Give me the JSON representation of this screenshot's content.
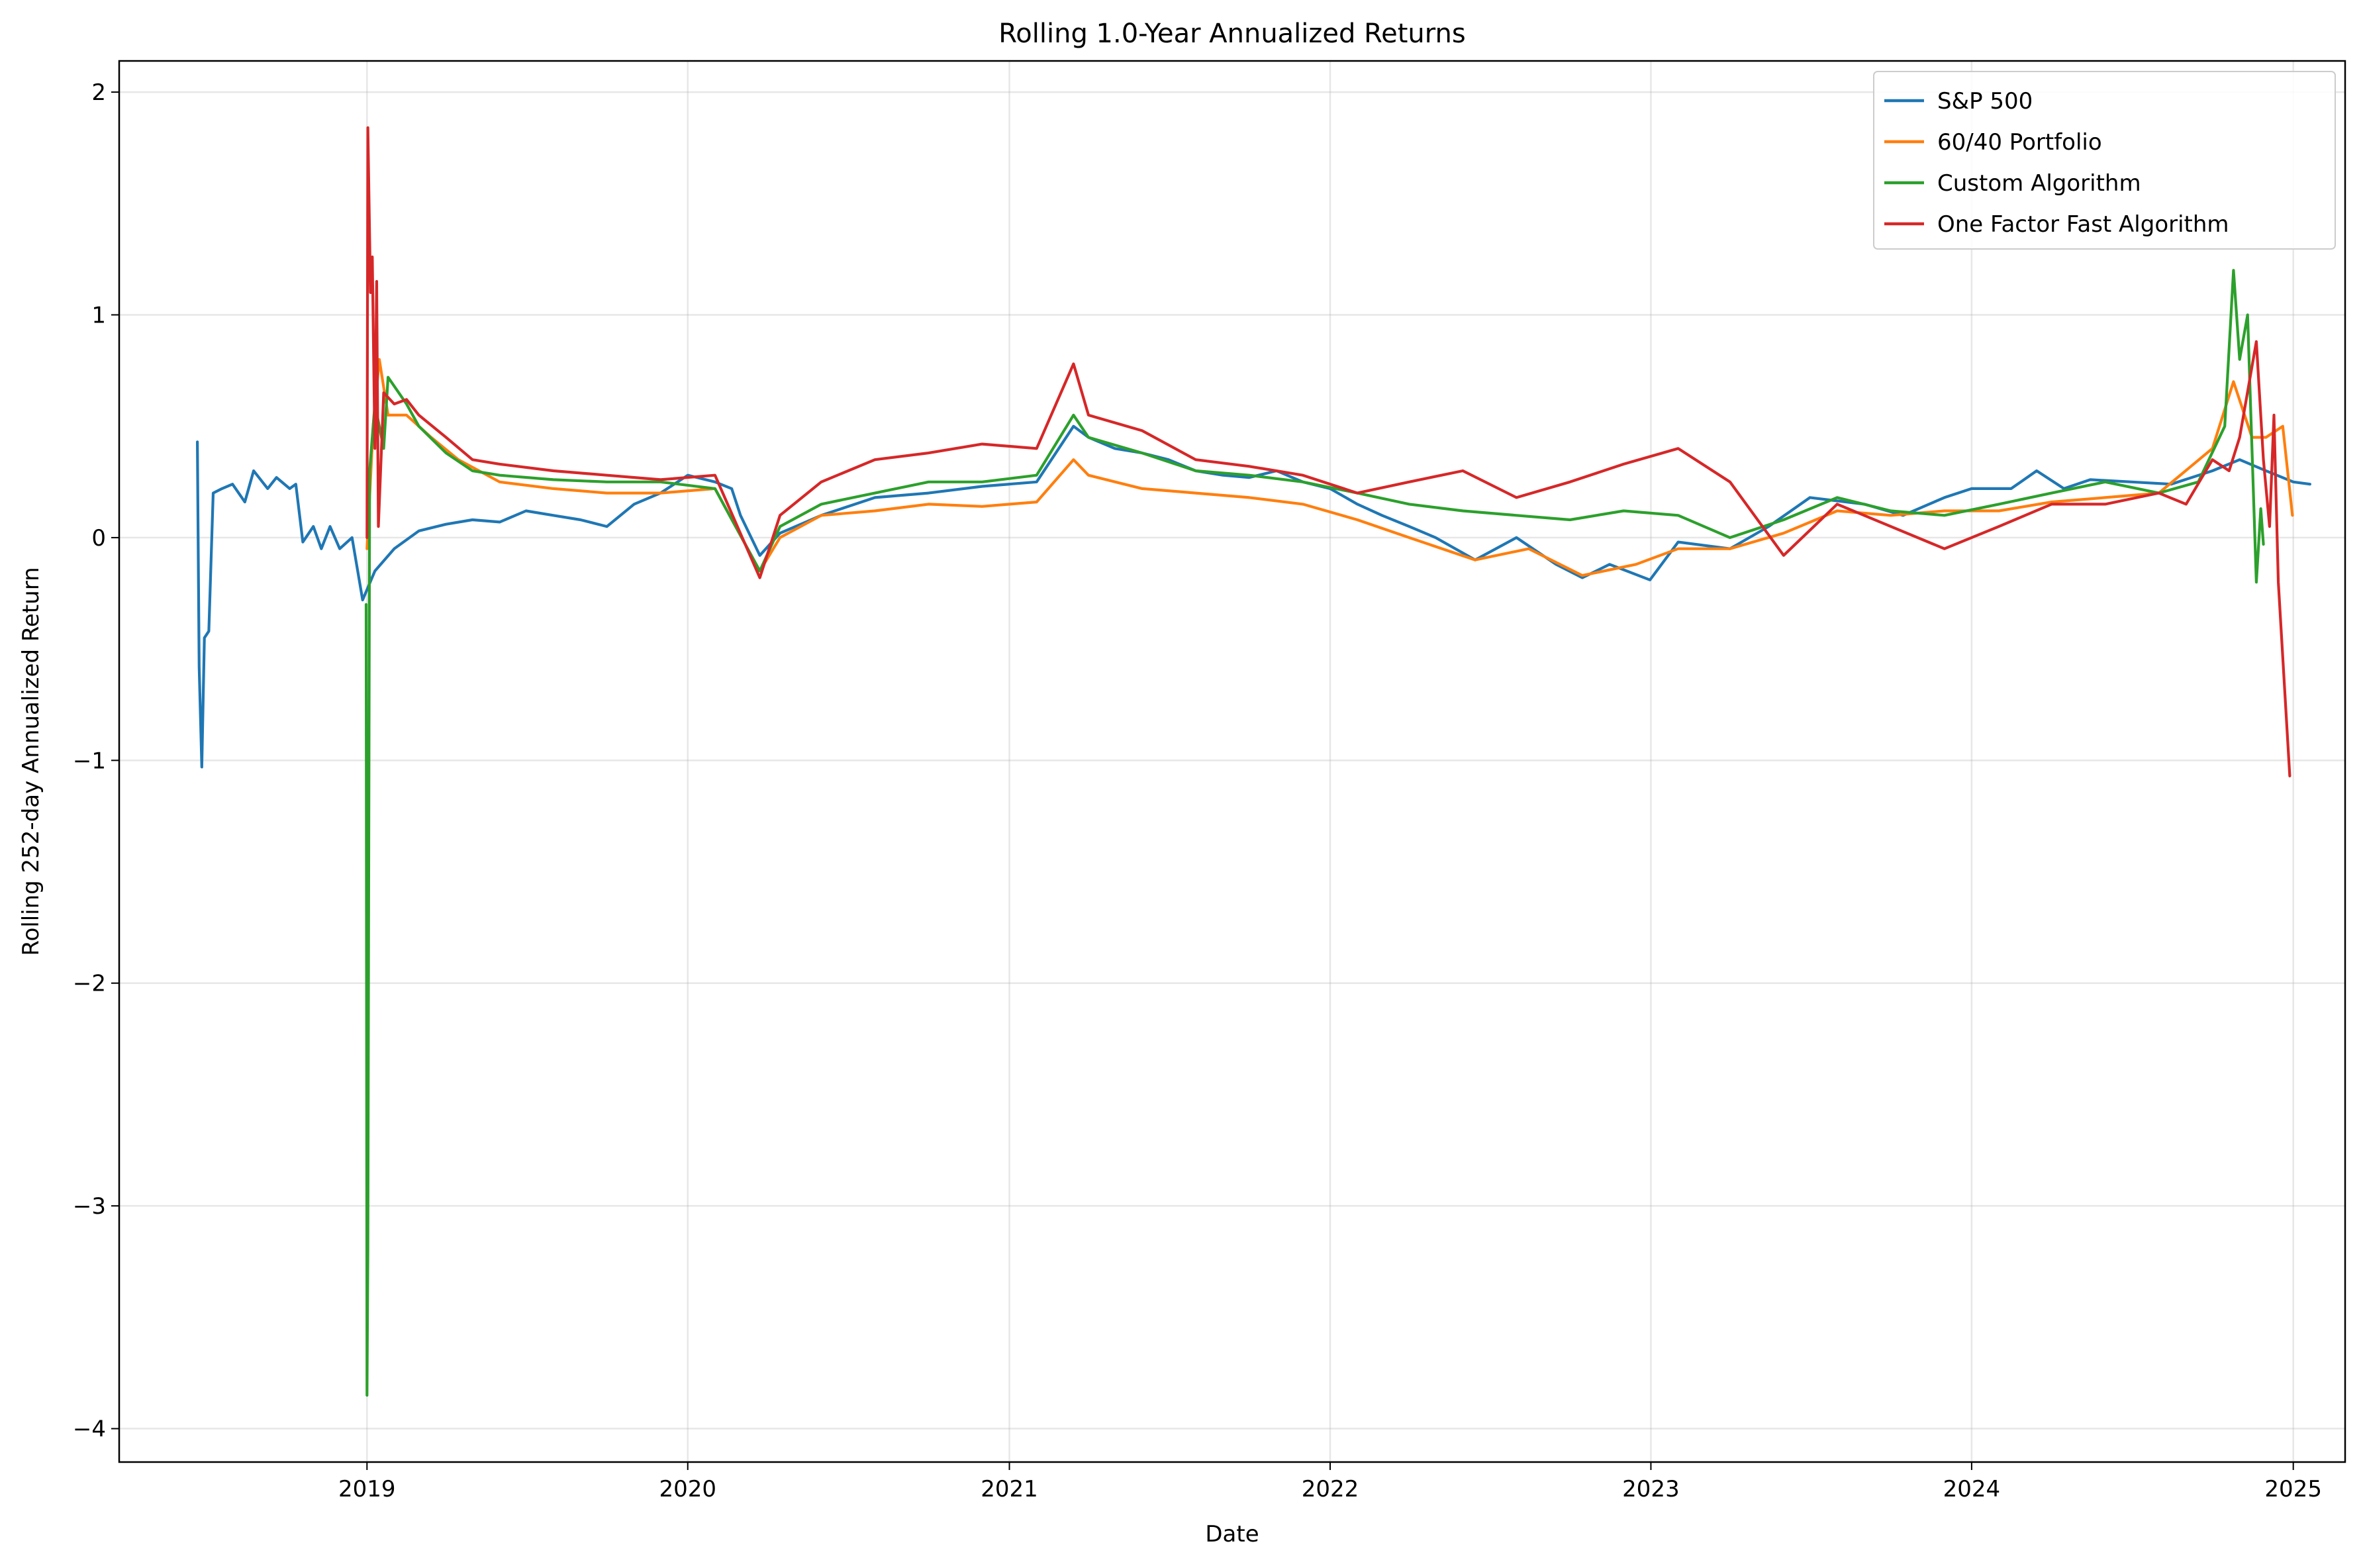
{
  "chart_data": {
    "type": "line",
    "title": "Rolling 1.0-Year Annualized Returns",
    "xlabel": "Date",
    "ylabel": "Rolling 252-day Annualized Return",
    "xlim": [
      "2018-03-25",
      "2025-03-01"
    ],
    "ylim": [
      -4.15,
      2.14
    ],
    "x_ticks": [
      "2019",
      "2020",
      "2021",
      "2022",
      "2023",
      "2024",
      "2025"
    ],
    "y_ticks": [
      {
        "value": 2,
        "label": "2"
      },
      {
        "value": 1,
        "label": "1"
      },
      {
        "value": 0,
        "label": "0"
      },
      {
        "value": -1,
        "label": "−1"
      },
      {
        "value": -2,
        "label": "−2"
      },
      {
        "value": -3,
        "label": "−3"
      },
      {
        "value": -4,
        "label": "−4"
      }
    ],
    "grid": true,
    "legend_position": "top-right",
    "series": [
      {
        "name": "S&P 500",
        "color": "#1f77b4",
        "points": [
          [
            "2018-06-22",
            0.43
          ],
          [
            "2018-06-24",
            -0.58
          ],
          [
            "2018-06-27",
            -1.03
          ],
          [
            "2018-06-30",
            -0.45
          ],
          [
            "2018-07-05",
            -0.42
          ],
          [
            "2018-07-10",
            0.2
          ],
          [
            "2018-07-20",
            0.22
          ],
          [
            "2018-08-01",
            0.24
          ],
          [
            "2018-08-15",
            0.16
          ],
          [
            "2018-08-25",
            0.3
          ],
          [
            "2018-09-10",
            0.22
          ],
          [
            "2018-09-20",
            0.27
          ],
          [
            "2018-10-05",
            0.22
          ],
          [
            "2018-10-12",
            0.24
          ],
          [
            "2018-10-20",
            -0.02
          ],
          [
            "2018-11-01",
            0.05
          ],
          [
            "2018-11-10",
            -0.05
          ],
          [
            "2018-11-20",
            0.05
          ],
          [
            "2018-12-01",
            -0.05
          ],
          [
            "2018-12-15",
            0.0
          ],
          [
            "2018-12-27",
            -0.28
          ],
          [
            "2019-01-10",
            -0.15
          ],
          [
            "2019-02-01",
            -0.05
          ],
          [
            "2019-03-01",
            0.03
          ],
          [
            "2019-04-01",
            0.06
          ],
          [
            "2019-05-01",
            0.08
          ],
          [
            "2019-06-01",
            0.07
          ],
          [
            "2019-07-01",
            0.12
          ],
          [
            "2019-08-01",
            0.1
          ],
          [
            "2019-09-01",
            0.08
          ],
          [
            "2019-10-01",
            0.05
          ],
          [
            "2019-11-01",
            0.15
          ],
          [
            "2019-12-01",
            0.2
          ],
          [
            "2020-01-01",
            0.28
          ],
          [
            "2020-02-01",
            0.25
          ],
          [
            "2020-02-20",
            0.22
          ],
          [
            "2020-03-01",
            0.1
          ],
          [
            "2020-03-23",
            -0.08
          ],
          [
            "2020-04-15",
            0.02
          ],
          [
            "2020-06-01",
            0.1
          ],
          [
            "2020-08-01",
            0.18
          ],
          [
            "2020-10-01",
            0.2
          ],
          [
            "2020-12-01",
            0.23
          ],
          [
            "2021-02-01",
            0.25
          ],
          [
            "2021-03-15",
            0.5
          ],
          [
            "2021-04-01",
            0.45
          ],
          [
            "2021-05-01",
            0.4
          ],
          [
            "2021-06-01",
            0.38
          ],
          [
            "2021-07-01",
            0.35
          ],
          [
            "2021-08-01",
            0.3
          ],
          [
            "2021-09-01",
            0.28
          ],
          [
            "2021-10-01",
            0.27
          ],
          [
            "2021-11-01",
            0.3
          ],
          [
            "2021-12-01",
            0.25
          ],
          [
            "2022-01-01",
            0.22
          ],
          [
            "2022-02-01",
            0.15
          ],
          [
            "2022-03-01",
            0.1
          ],
          [
            "2022-04-01",
            0.05
          ],
          [
            "2022-05-01",
            0.0
          ],
          [
            "2022-06-15",
            -0.1
          ],
          [
            "2022-08-01",
            0.0
          ],
          [
            "2022-09-15",
            -0.12
          ],
          [
            "2022-10-15",
            -0.18
          ],
          [
            "2022-11-15",
            -0.12
          ],
          [
            "2022-12-31",
            -0.19
          ],
          [
            "2023-02-01",
            -0.02
          ],
          [
            "2023-04-01",
            -0.05
          ],
          [
            "2023-05-15",
            0.05
          ],
          [
            "2023-07-01",
            0.18
          ],
          [
            "2023-09-01",
            0.15
          ],
          [
            "2023-10-15",
            0.1
          ],
          [
            "2023-12-01",
            0.18
          ],
          [
            "2024-01-01",
            0.22
          ],
          [
            "2024-02-15",
            0.22
          ],
          [
            "2024-03-15",
            0.3
          ],
          [
            "2024-04-15",
            0.22
          ],
          [
            "2024-05-15",
            0.26
          ],
          [
            "2024-07-01",
            0.25
          ],
          [
            "2024-08-15",
            0.24
          ],
          [
            "2024-10-01",
            0.3
          ],
          [
            "2024-11-01",
            0.35
          ],
          [
            "2024-12-01",
            0.3
          ],
          [
            "2025-01-01",
            0.25
          ],
          [
            "2025-01-20",
            0.24
          ]
        ]
      },
      {
        "name": "60/40 Portfolio",
        "color": "#ff7f0e",
        "points": [
          [
            "2019-01-01",
            -0.05
          ],
          [
            "2019-01-08",
            0.5
          ],
          [
            "2019-01-15",
            0.8
          ],
          [
            "2019-01-25",
            0.55
          ],
          [
            "2019-02-15",
            0.55
          ],
          [
            "2019-03-15",
            0.45
          ],
          [
            "2019-04-15",
            0.35
          ],
          [
            "2019-06-01",
            0.25
          ],
          [
            "2019-08-01",
            0.22
          ],
          [
            "2019-10-01",
            0.2
          ],
          [
            "2019-12-01",
            0.2
          ],
          [
            "2020-02-01",
            0.22
          ],
          [
            "2020-03-23",
            -0.15
          ],
          [
            "2020-04-15",
            0.0
          ],
          [
            "2020-06-01",
            0.1
          ],
          [
            "2020-08-01",
            0.12
          ],
          [
            "2020-10-01",
            0.15
          ],
          [
            "2020-12-01",
            0.14
          ],
          [
            "2021-02-01",
            0.16
          ],
          [
            "2021-03-15",
            0.35
          ],
          [
            "2021-04-01",
            0.28
          ],
          [
            "2021-06-01",
            0.22
          ],
          [
            "2021-08-01",
            0.2
          ],
          [
            "2021-10-01",
            0.18
          ],
          [
            "2021-12-01",
            0.15
          ],
          [
            "2022-02-01",
            0.08
          ],
          [
            "2022-04-01",
            0.0
          ],
          [
            "2022-06-15",
            -0.1
          ],
          [
            "2022-08-15",
            -0.05
          ],
          [
            "2022-10-15",
            -0.17
          ],
          [
            "2022-12-15",
            -0.12
          ],
          [
            "2023-02-01",
            -0.05
          ],
          [
            "2023-04-01",
            -0.05
          ],
          [
            "2023-06-01",
            0.02
          ],
          [
            "2023-08-01",
            0.12
          ],
          [
            "2023-10-01",
            0.1
          ],
          [
            "2023-12-01",
            0.12
          ],
          [
            "2024-02-01",
            0.12
          ],
          [
            "2024-04-01",
            0.16
          ],
          [
            "2024-06-01",
            0.18
          ],
          [
            "2024-08-01",
            0.2
          ],
          [
            "2024-10-01",
            0.4
          ],
          [
            "2024-10-25",
            0.7
          ],
          [
            "2024-11-15",
            0.45
          ],
          [
            "2024-12-01",
            0.45
          ],
          [
            "2024-12-20",
            0.5
          ],
          [
            "2024-12-31",
            0.1
          ]
        ]
      },
      {
        "name": "Custom Algorithm",
        "color": "#2ca02c",
        "points": [
          [
            "2018-12-31",
            -0.3
          ],
          [
            "2019-01-01",
            -3.85
          ],
          [
            "2019-01-02",
            -3.2
          ],
          [
            "2019-01-04",
            0.3
          ],
          [
            "2019-01-10",
            0.6
          ],
          [
            "2019-01-20",
            0.4
          ],
          [
            "2019-01-25",
            0.72
          ],
          [
            "2019-02-15",
            0.6
          ],
          [
            "2019-03-01",
            0.5
          ],
          [
            "2019-04-01",
            0.38
          ],
          [
            "2019-05-01",
            0.3
          ],
          [
            "2019-06-01",
            0.28
          ],
          [
            "2019-08-01",
            0.26
          ],
          [
            "2019-10-01",
            0.25
          ],
          [
            "2019-12-01",
            0.25
          ],
          [
            "2020-02-01",
            0.22
          ],
          [
            "2020-03-23",
            -0.15
          ],
          [
            "2020-04-15",
            0.05
          ],
          [
            "2020-06-01",
            0.15
          ],
          [
            "2020-08-01",
            0.2
          ],
          [
            "2020-10-01",
            0.25
          ],
          [
            "2020-12-01",
            0.25
          ],
          [
            "2021-02-01",
            0.28
          ],
          [
            "2021-03-15",
            0.55
          ],
          [
            "2021-04-01",
            0.45
          ],
          [
            "2021-06-01",
            0.38
          ],
          [
            "2021-08-01",
            0.3
          ],
          [
            "2021-10-01",
            0.28
          ],
          [
            "2021-12-01",
            0.25
          ],
          [
            "2022-02-01",
            0.2
          ],
          [
            "2022-04-01",
            0.15
          ],
          [
            "2022-06-01",
            0.12
          ],
          [
            "2022-08-01",
            0.1
          ],
          [
            "2022-10-01",
            0.08
          ],
          [
            "2022-12-01",
            0.12
          ],
          [
            "2023-02-01",
            0.1
          ],
          [
            "2023-04-01",
            0.0
          ],
          [
            "2023-06-01",
            0.08
          ],
          [
            "2023-08-01",
            0.18
          ],
          [
            "2023-10-01",
            0.12
          ],
          [
            "2023-12-01",
            0.1
          ],
          [
            "2024-02-01",
            0.15
          ],
          [
            "2024-04-01",
            0.2
          ],
          [
            "2024-06-01",
            0.25
          ],
          [
            "2024-08-01",
            0.2
          ],
          [
            "2024-09-15",
            0.25
          ],
          [
            "2024-10-15",
            0.5
          ],
          [
            "2024-10-25",
            1.2
          ],
          [
            "2024-11-01",
            0.8
          ],
          [
            "2024-11-10",
            1.0
          ],
          [
            "2024-11-20",
            -0.2
          ],
          [
            "2024-11-25",
            0.13
          ],
          [
            "2024-11-28",
            -0.03
          ]
        ]
      },
      {
        "name": "One Factor Fast Algorithm",
        "color": "#d62728",
        "points": [
          [
            "2019-01-01",
            0.0
          ],
          [
            "2019-01-02",
            1.84
          ],
          [
            "2019-01-05",
            1.1
          ],
          [
            "2019-01-07",
            1.26
          ],
          [
            "2019-01-10",
            0.4
          ],
          [
            "2019-01-12",
            1.15
          ],
          [
            "2019-01-14",
            0.05
          ],
          [
            "2019-01-20",
            0.65
          ],
          [
            "2019-02-01",
            0.6
          ],
          [
            "2019-02-15",
            0.62
          ],
          [
            "2019-03-01",
            0.55
          ],
          [
            "2019-04-01",
            0.45
          ],
          [
            "2019-05-01",
            0.35
          ],
          [
            "2019-06-01",
            0.33
          ],
          [
            "2019-08-01",
            0.3
          ],
          [
            "2019-10-01",
            0.28
          ],
          [
            "2019-12-01",
            0.26
          ],
          [
            "2020-02-01",
            0.28
          ],
          [
            "2020-03-23",
            -0.18
          ],
          [
            "2020-04-15",
            0.1
          ],
          [
            "2020-06-01",
            0.25
          ],
          [
            "2020-08-01",
            0.35
          ],
          [
            "2020-10-01",
            0.38
          ],
          [
            "2020-12-01",
            0.42
          ],
          [
            "2021-02-01",
            0.4
          ],
          [
            "2021-03-15",
            0.78
          ],
          [
            "2021-04-01",
            0.55
          ],
          [
            "2021-06-01",
            0.48
          ],
          [
            "2021-08-01",
            0.35
          ],
          [
            "2021-10-01",
            0.32
          ],
          [
            "2021-12-01",
            0.28
          ],
          [
            "2022-02-01",
            0.2
          ],
          [
            "2022-04-01",
            0.25
          ],
          [
            "2022-06-01",
            0.3
          ],
          [
            "2022-08-01",
            0.18
          ],
          [
            "2022-10-01",
            0.25
          ],
          [
            "2022-12-01",
            0.33
          ],
          [
            "2023-02-01",
            0.4
          ],
          [
            "2023-04-01",
            0.25
          ],
          [
            "2023-06-01",
            -0.08
          ],
          [
            "2023-08-01",
            0.15
          ],
          [
            "2023-10-01",
            0.05
          ],
          [
            "2023-12-01",
            -0.05
          ],
          [
            "2024-02-01",
            0.05
          ],
          [
            "2024-04-01",
            0.15
          ],
          [
            "2024-06-01",
            0.15
          ],
          [
            "2024-08-01",
            0.2
          ],
          [
            "2024-09-01",
            0.15
          ],
          [
            "2024-10-01",
            0.35
          ],
          [
            "2024-10-20",
            0.3
          ],
          [
            "2024-11-01",
            0.45
          ],
          [
            "2024-11-20",
            0.88
          ],
          [
            "2024-11-28",
            0.35
          ],
          [
            "2024-12-05",
            0.05
          ],
          [
            "2024-12-10",
            0.55
          ],
          [
            "2024-12-15",
            -0.2
          ],
          [
            "2024-12-28",
            -1.07
          ]
        ]
      }
    ]
  }
}
